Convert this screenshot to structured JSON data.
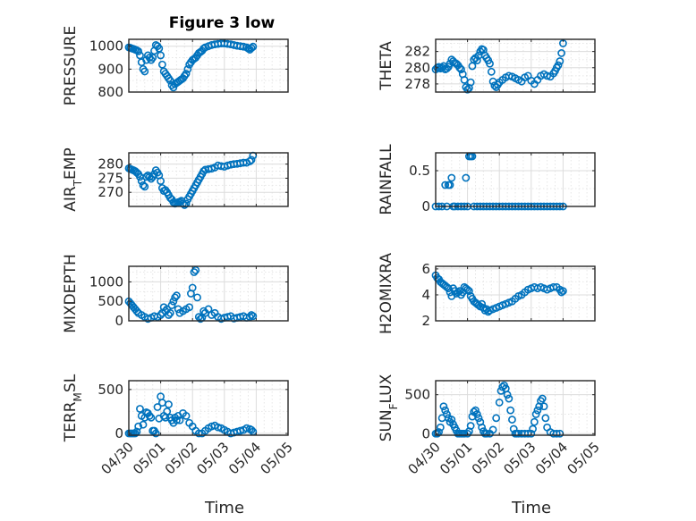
{
  "figure": {
    "title": "Figure 3 low",
    "xlabel": "Time",
    "marker_color": "#0072BD"
  },
  "chart_data": [
    {
      "type": "scatter",
      "ylabel": "PRESSURE",
      "ylim": [
        800,
        1030
      ],
      "yticks": [
        800,
        900,
        1000
      ],
      "xlim": [
        0,
        5
      ],
      "xtick_labels": [
        "04/30",
        "05/01",
        "05/02",
        "05/03",
        "05/04",
        "05/05"
      ],
      "x": [
        0.0,
        0.05,
        0.1,
        0.15,
        0.2,
        0.25,
        0.3,
        0.35,
        0.4,
        0.45,
        0.5,
        0.55,
        0.6,
        0.65,
        0.7,
        0.75,
        0.8,
        0.85,
        0.9,
        0.95,
        1.0,
        1.05,
        1.1,
        1.15,
        1.2,
        1.25,
        1.3,
        1.35,
        1.4,
        1.45,
        1.5,
        1.55,
        1.6,
        1.65,
        1.7,
        1.75,
        1.8,
        1.85,
        1.9,
        1.95,
        2.0,
        2.05,
        2.1,
        2.15,
        2.2,
        2.25,
        2.3,
        2.35,
        2.4,
        2.5,
        2.6,
        2.7,
        2.8,
        2.9,
        3.0,
        3.1,
        3.2,
        3.3,
        3.4,
        3.5,
        3.6,
        3.7,
        3.75,
        3.8,
        3.85,
        3.9
      ],
      "y": [
        995,
        993,
        990,
        988,
        985,
        982,
        978,
        960,
        930,
        900,
        890,
        940,
        960,
        950,
        940,
        950,
        980,
        1005,
        1000,
        990,
        960,
        920,
        890,
        880,
        870,
        860,
        850,
        830,
        820,
        835,
        840,
        845,
        850,
        855,
        860,
        870,
        880,
        900,
        920,
        930,
        940,
        945,
        950,
        960,
        970,
        975,
        980,
        990,
        995,
        1000,
        1005,
        1008,
        1010,
        1012,
        1012,
        1010,
        1008,
        1005,
        1002,
        1000,
        998,
        995,
        990,
        985,
        992,
        998
      ]
    },
    {
      "type": "scatter",
      "ylabel": "THETA",
      "ylim": [
        277,
        283.5
      ],
      "yticks": [
        278,
        280,
        282
      ],
      "xlim": [
        0,
        5
      ],
      "xtick_labels": [
        "04/30",
        "05/01",
        "05/02",
        "05/03",
        "05/04",
        "05/05"
      ],
      "x": [
        0.0,
        0.05,
        0.1,
        0.15,
        0.2,
        0.25,
        0.3,
        0.35,
        0.4,
        0.45,
        0.5,
        0.55,
        0.6,
        0.65,
        0.7,
        0.75,
        0.8,
        0.85,
        0.9,
        0.95,
        1.0,
        1.05,
        1.1,
        1.15,
        1.2,
        1.25,
        1.3,
        1.35,
        1.4,
        1.45,
        1.5,
        1.55,
        1.6,
        1.65,
        1.7,
        1.75,
        1.8,
        1.85,
        1.9,
        1.95,
        2.0,
        2.1,
        2.2,
        2.3,
        2.4,
        2.5,
        2.6,
        2.7,
        2.8,
        2.9,
        3.0,
        3.1,
        3.2,
        3.3,
        3.4,
        3.5,
        3.6,
        3.7,
        3.75,
        3.8,
        3.85,
        3.9,
        3.95,
        4.0
      ],
      "y": [
        279.8,
        280,
        280.1,
        279.9,
        280,
        280.2,
        279.8,
        279.9,
        280.1,
        280.5,
        281,
        280.8,
        280.6,
        280.5,
        280.3,
        280,
        279.8,
        279.2,
        278.5,
        277.6,
        277.3,
        277.5,
        278.2,
        280.2,
        281,
        281.2,
        280.9,
        281.5,
        282,
        282.3,
        282.2,
        281.5,
        281.2,
        280.9,
        280.5,
        279.5,
        278.3,
        277.8,
        277.6,
        277.9,
        278.2,
        278.5,
        278.8,
        279,
        278.9,
        278.7,
        278.5,
        278.3,
        278.8,
        279,
        278.4,
        278,
        278.5,
        279,
        279.2,
        279,
        278.9,
        279.3,
        279.6,
        280,
        280.3,
        280.8,
        281.8,
        283
      ]
    },
    {
      "type": "scatter",
      "ylabel": "AIR_TEMP",
      "ylim": [
        265,
        284
      ],
      "yticks": [
        270,
        275,
        280
      ],
      "xlim": [
        0,
        5
      ],
      "xtick_labels": [
        "04/30",
        "05/01",
        "05/02",
        "05/03",
        "05/04",
        "05/05"
      ],
      "x": [
        0.0,
        0.05,
        0.1,
        0.15,
        0.2,
        0.25,
        0.3,
        0.35,
        0.4,
        0.45,
        0.5,
        0.55,
        0.6,
        0.65,
        0.7,
        0.75,
        0.8,
        0.85,
        0.9,
        0.95,
        1.0,
        1.05,
        1.1,
        1.15,
        1.2,
        1.25,
        1.3,
        1.35,
        1.4,
        1.45,
        1.5,
        1.55,
        1.6,
        1.65,
        1.7,
        1.75,
        1.8,
        1.85,
        1.9,
        1.95,
        2.0,
        2.05,
        2.1,
        2.15,
        2.2,
        2.25,
        2.3,
        2.35,
        2.4,
        2.5,
        2.6,
        2.7,
        2.8,
        2.9,
        3.0,
        3.1,
        3.2,
        3.3,
        3.4,
        3.5,
        3.6,
        3.7,
        3.8,
        3.85,
        3.9
      ],
      "y": [
        278.5,
        278.3,
        278,
        277.8,
        277.5,
        277,
        276.5,
        275.5,
        274,
        272.5,
        272,
        275.5,
        276,
        275.5,
        274.8,
        275.5,
        276.5,
        277.8,
        277,
        276,
        274,
        271.5,
        270.5,
        270.8,
        270,
        269,
        268,
        267.5,
        266.5,
        266,
        266.3,
        266.5,
        266.7,
        267,
        266,
        265.5,
        266,
        267.5,
        268.5,
        269.5,
        270.5,
        271.5,
        272.5,
        273.5,
        274.5,
        275.5,
        276.5,
        277.5,
        278,
        278.2,
        278.4,
        278.8,
        279.5,
        279.3,
        279.1,
        279.5,
        279.8,
        280,
        280.1,
        280.3,
        280.5,
        280.5,
        281,
        281.5,
        283
      ]
    },
    {
      "type": "scatter",
      "ylabel": "RAINFALL",
      "ylim": [
        0,
        0.75
      ],
      "yticks": [
        0,
        0.5
      ],
      "xlim": [
        0,
        5
      ],
      "xtick_labels": [
        "04/30",
        "05/01",
        "05/02",
        "05/03",
        "05/04",
        "05/05"
      ],
      "x": [
        0.0,
        0.1,
        0.2,
        0.3,
        0.35,
        0.4,
        0.45,
        0.5,
        0.55,
        0.6,
        0.7,
        0.8,
        0.9,
        0.95,
        1.0,
        1.05,
        1.1,
        1.15,
        1.2,
        1.3,
        1.4,
        1.5,
        1.6,
        1.7,
        1.8,
        1.9,
        2.0,
        2.1,
        2.2,
        2.3,
        2.4,
        2.5,
        2.6,
        2.7,
        2.8,
        2.9,
        3.0,
        3.1,
        3.2,
        3.3,
        3.4,
        3.5,
        3.6,
        3.7,
        3.8,
        3.9,
        4.0
      ],
      "y": [
        0,
        0,
        0,
        0.3,
        0,
        0.3,
        0.3,
        0.4,
        0,
        0,
        0,
        0,
        0,
        0.4,
        0,
        0.7,
        0.7,
        0.7,
        0,
        0,
        0,
        0,
        0,
        0,
        0,
        0,
        0,
        0,
        0,
        0,
        0,
        0,
        0,
        0,
        0,
        0,
        0,
        0,
        0,
        0,
        0,
        0,
        0,
        0,
        0,
        0,
        0
      ]
    },
    {
      "type": "scatter",
      "ylabel": "MIXDEPTH",
      "ylim": [
        0,
        1400
      ],
      "yticks": [
        0,
        500,
        1000
      ],
      "xlim": [
        0,
        5
      ],
      "xtick_labels": [
        "04/30",
        "05/01",
        "05/02",
        "05/03",
        "05/04",
        "05/05"
      ],
      "x": [
        0.0,
        0.05,
        0.1,
        0.15,
        0.2,
        0.25,
        0.3,
        0.4,
        0.5,
        0.6,
        0.7,
        0.8,
        0.9,
        1.0,
        1.05,
        1.1,
        1.15,
        1.2,
        1.25,
        1.3,
        1.35,
        1.4,
        1.45,
        1.5,
        1.55,
        1.6,
        1.7,
        1.8,
        1.9,
        1.95,
        2.0,
        2.05,
        2.1,
        2.15,
        2.2,
        2.25,
        2.3,
        2.35,
        2.4,
        2.5,
        2.6,
        2.7,
        2.8,
        2.9,
        3.0,
        3.1,
        3.2,
        3.3,
        3.4,
        3.5,
        3.6,
        3.7,
        3.8,
        3.85,
        3.9
      ],
      "y": [
        500,
        450,
        400,
        350,
        300,
        250,
        200,
        150,
        100,
        50,
        80,
        120,
        100,
        150,
        200,
        350,
        250,
        300,
        150,
        200,
        400,
        500,
        600,
        650,
        300,
        200,
        250,
        300,
        350,
        700,
        850,
        1250,
        1300,
        600,
        100,
        50,
        80,
        250,
        200,
        300,
        150,
        200,
        100,
        50,
        80,
        100,
        120,
        60,
        80,
        100,
        120,
        80,
        100,
        150,
        120
      ]
    },
    {
      "type": "scatter",
      "ylabel": "H2OMIXRA",
      "ylim": [
        2,
        6.2
      ],
      "yticks": [
        2,
        4,
        6
      ],
      "xlim": [
        0,
        5
      ],
      "xtick_labels": [
        "04/30",
        "05/01",
        "05/02",
        "05/03",
        "05/04",
        "05/05"
      ],
      "x": [
        0.0,
        0.05,
        0.1,
        0.15,
        0.2,
        0.25,
        0.3,
        0.35,
        0.4,
        0.45,
        0.5,
        0.55,
        0.6,
        0.65,
        0.7,
        0.75,
        0.8,
        0.85,
        0.9,
        0.95,
        1.0,
        1.05,
        1.1,
        1.15,
        1.2,
        1.25,
        1.3,
        1.35,
        1.4,
        1.45,
        1.5,
        1.55,
        1.6,
        1.65,
        1.7,
        1.8,
        1.9,
        2.0,
        2.1,
        2.2,
        2.3,
        2.4,
        2.5,
        2.6,
        2.7,
        2.8,
        2.9,
        3.0,
        3.1,
        3.2,
        3.3,
        3.4,
        3.5,
        3.6,
        3.7,
        3.8,
        3.9,
        3.95,
        4.0
      ],
      "y": [
        5.5,
        5.3,
        5.2,
        5,
        4.9,
        4.8,
        4.7,
        4.6,
        4.5,
        4.2,
        3.9,
        4.5,
        4.3,
        4.1,
        4.2,
        4.3,
        4.0,
        4.2,
        4.6,
        4.5,
        4.4,
        4.3,
        3.9,
        3.7,
        3.5,
        3.4,
        3.3,
        3.2,
        3.1,
        3.3,
        3.0,
        2.8,
        2.9,
        2.7,
        2.8,
        2.9,
        3.0,
        3.1,
        3.2,
        3.3,
        3.4,
        3.5,
        3.7,
        3.9,
        4.0,
        4.2,
        4.4,
        4.5,
        4.6,
        4.5,
        4.6,
        4.5,
        4.4,
        4.5,
        4.6,
        4.6,
        4.4,
        4.2,
        4.3
      ]
    },
    {
      "type": "scatter",
      "ylabel": "TERR_MSL",
      "ylim": [
        -20,
        600
      ],
      "yticks": [
        0,
        500
      ],
      "xlim": [
        0,
        5
      ],
      "xtick_labels": [
        "04/30",
        "05/01",
        "05/02",
        "05/03",
        "05/04",
        "05/05"
      ],
      "x": [
        0.0,
        0.05,
        0.1,
        0.15,
        0.2,
        0.25,
        0.3,
        0.35,
        0.4,
        0.45,
        0.5,
        0.55,
        0.6,
        0.65,
        0.7,
        0.75,
        0.8,
        0.85,
        0.9,
        0.95,
        1.0,
        1.05,
        1.1,
        1.15,
        1.2,
        1.25,
        1.3,
        1.35,
        1.4,
        1.45,
        1.5,
        1.55,
        1.6,
        1.7,
        1.8,
        1.9,
        2.0,
        2.1,
        2.2,
        2.3,
        2.4,
        2.5,
        2.6,
        2.7,
        2.8,
        2.9,
        3.0,
        3.1,
        3.2,
        3.3,
        3.4,
        3.5,
        3.6,
        3.7,
        3.8,
        3.85,
        3.9
      ],
      "y": [
        0,
        0,
        0,
        0,
        0,
        20,
        80,
        280,
        200,
        100,
        180,
        240,
        230,
        200,
        180,
        30,
        30,
        0,
        300,
        170,
        420,
        350,
        200,
        180,
        250,
        330,
        180,
        150,
        120,
        180,
        150,
        200,
        150,
        230,
        200,
        120,
        80,
        30,
        0,
        0,
        30,
        60,
        80,
        90,
        70,
        60,
        40,
        20,
        0,
        10,
        20,
        30,
        40,
        60,
        50,
        40,
        20
      ]
    },
    {
      "type": "scatter",
      "ylabel": "SUN_FLUX",
      "ylim": [
        -20,
        680
      ],
      "yticks": [
        0,
        500
      ],
      "xlim": [
        0,
        5
      ],
      "xtick_labels": [
        "04/30",
        "05/01",
        "05/02",
        "05/03",
        "05/04",
        "05/05"
      ],
      "x": [
        0.0,
        0.05,
        0.1,
        0.15,
        0.2,
        0.25,
        0.3,
        0.35,
        0.4,
        0.45,
        0.5,
        0.55,
        0.6,
        0.65,
        0.7,
        0.75,
        0.8,
        0.85,
        0.9,
        1.0,
        1.05,
        1.1,
        1.15,
        1.2,
        1.25,
        1.3,
        1.35,
        1.4,
        1.45,
        1.5,
        1.55,
        1.6,
        1.7,
        1.8,
        1.9,
        2.0,
        2.05,
        2.1,
        2.15,
        2.2,
        2.25,
        2.3,
        2.35,
        2.4,
        2.45,
        2.5,
        2.55,
        2.6,
        2.7,
        2.8,
        2.9,
        3.0,
        3.05,
        3.1,
        3.15,
        3.2,
        3.25,
        3.3,
        3.35,
        3.4,
        3.45,
        3.5,
        3.6,
        3.7,
        3.8,
        3.9
      ],
      "y": [
        0,
        0,
        20,
        80,
        200,
        350,
        300,
        250,
        200,
        150,
        180,
        120,
        80,
        40,
        0,
        0,
        0,
        0,
        0,
        0,
        30,
        100,
        220,
        280,
        300,
        250,
        200,
        150,
        80,
        30,
        0,
        0,
        0,
        50,
        200,
        400,
        550,
        600,
        620,
        580,
        500,
        450,
        300,
        180,
        60,
        0,
        0,
        0,
        0,
        0,
        0,
        0,
        60,
        150,
        250,
        300,
        350,
        420,
        450,
        350,
        200,
        80,
        20,
        0,
        0,
        0
      ]
    }
  ]
}
